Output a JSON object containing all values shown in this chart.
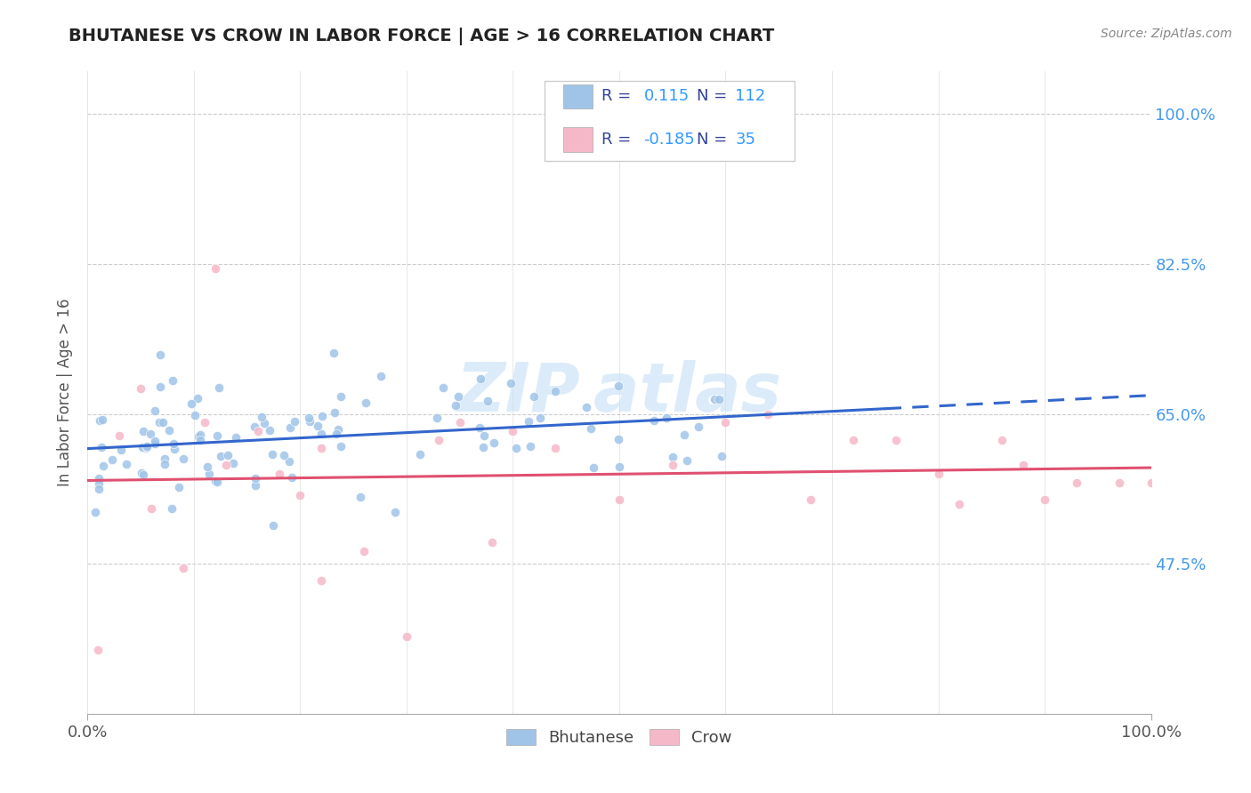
{
  "title": "BHUTANESE VS CROW IN LABOR FORCE | AGE > 16 CORRELATION CHART",
  "source": "Source: ZipAtlas.com",
  "ylabel": "In Labor Force | Age > 16",
  "xlim": [
    0.0,
    1.0
  ],
  "ylim": [
    0.3,
    1.05
  ],
  "ytick_values": [
    0.475,
    0.65,
    0.825,
    1.0
  ],
  "ytick_labels": [
    "47.5%",
    "65.0%",
    "82.5%",
    "100.0%"
  ],
  "xtick_labels": [
    "0.0%",
    "100.0%"
  ],
  "bhutanese_R": 0.115,
  "bhutanese_N": 112,
  "crow_R": -0.185,
  "crow_N": 35,
  "blue_scatter_color": "#a0c4e8",
  "pink_scatter_color": "#f5b8c8",
  "blue_line_color": "#3366cc",
  "pink_line_color": "#e05070",
  "legend_R_color": "#333399",
  "legend_val_color": "#3399ff",
  "watermark_color": "#c5dff5",
  "title_color": "#222222",
  "source_color": "#888888",
  "right_tick_color": "#4499ee",
  "grid_color": "#cccccc",
  "background": "#ffffff"
}
